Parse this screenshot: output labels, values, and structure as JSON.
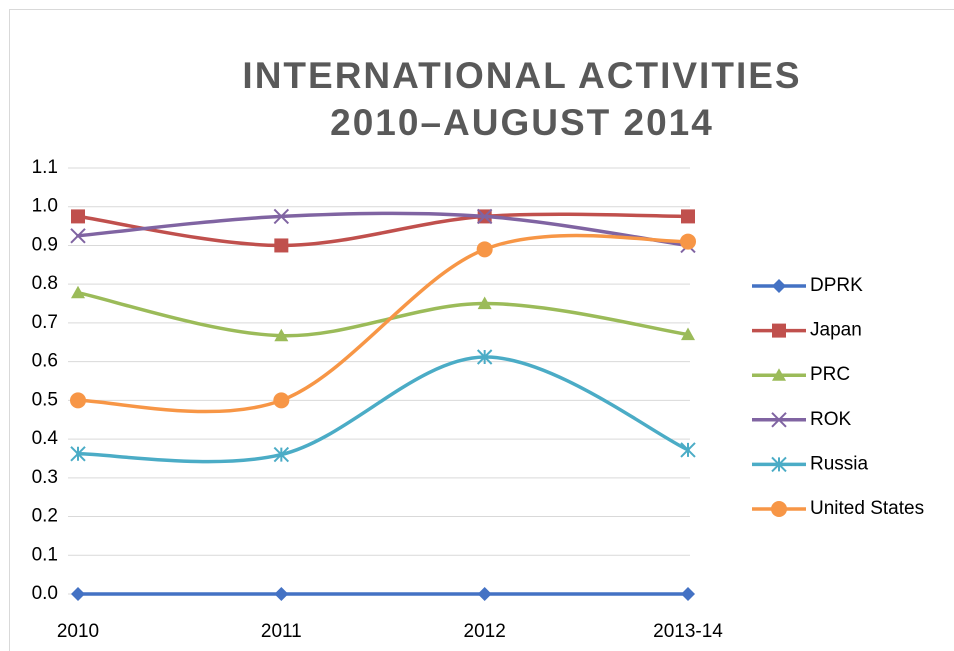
{
  "chart_data": {
    "type": "line",
    "title": [
      "INTERNATIONAL ACTIVITIES",
      "2010–AUGUST 2014"
    ],
    "categories": [
      "2010",
      "2011",
      "2012",
      "2013-14"
    ],
    "series": [
      {
        "name": "DPRK",
        "color": "#4472c4",
        "marker": "diamond",
        "values": [
          0,
          0,
          0,
          0
        ]
      },
      {
        "name": "Japan",
        "color": "#c0504d",
        "marker": "square",
        "values": [
          0.975,
          0.9,
          0.975,
          0.975
        ]
      },
      {
        "name": "PRC",
        "color": "#9bbb59",
        "marker": "triangle",
        "values": [
          0.778,
          0.667,
          0.75,
          0.67
        ]
      },
      {
        "name": "ROK",
        "color": "#8064a2",
        "marker": "x",
        "values": [
          0.925,
          0.975,
          0.975,
          0.9
        ]
      },
      {
        "name": "Russia",
        "color": "#4bacc6",
        "marker": "star",
        "values": [
          0.362,
          0.36,
          0.612,
          0.372
        ]
      },
      {
        "name": "United States",
        "color": "#f79646",
        "marker": "circle",
        "values": [
          0.5,
          0.5,
          0.89,
          0.91
        ]
      }
    ],
    "ylim": [
      0,
      1.1
    ],
    "yticks": [
      {
        "value": 0,
        "label": "0.0"
      },
      0.1,
      0.2,
      0.3,
      0.4,
      0.5,
      0.6,
      0.7,
      0.8,
      0.9,
      {
        "value": 1,
        "label": "1.0"
      },
      1.1
    ],
    "grid": true,
    "smooth": true,
    "legend": "right"
  }
}
